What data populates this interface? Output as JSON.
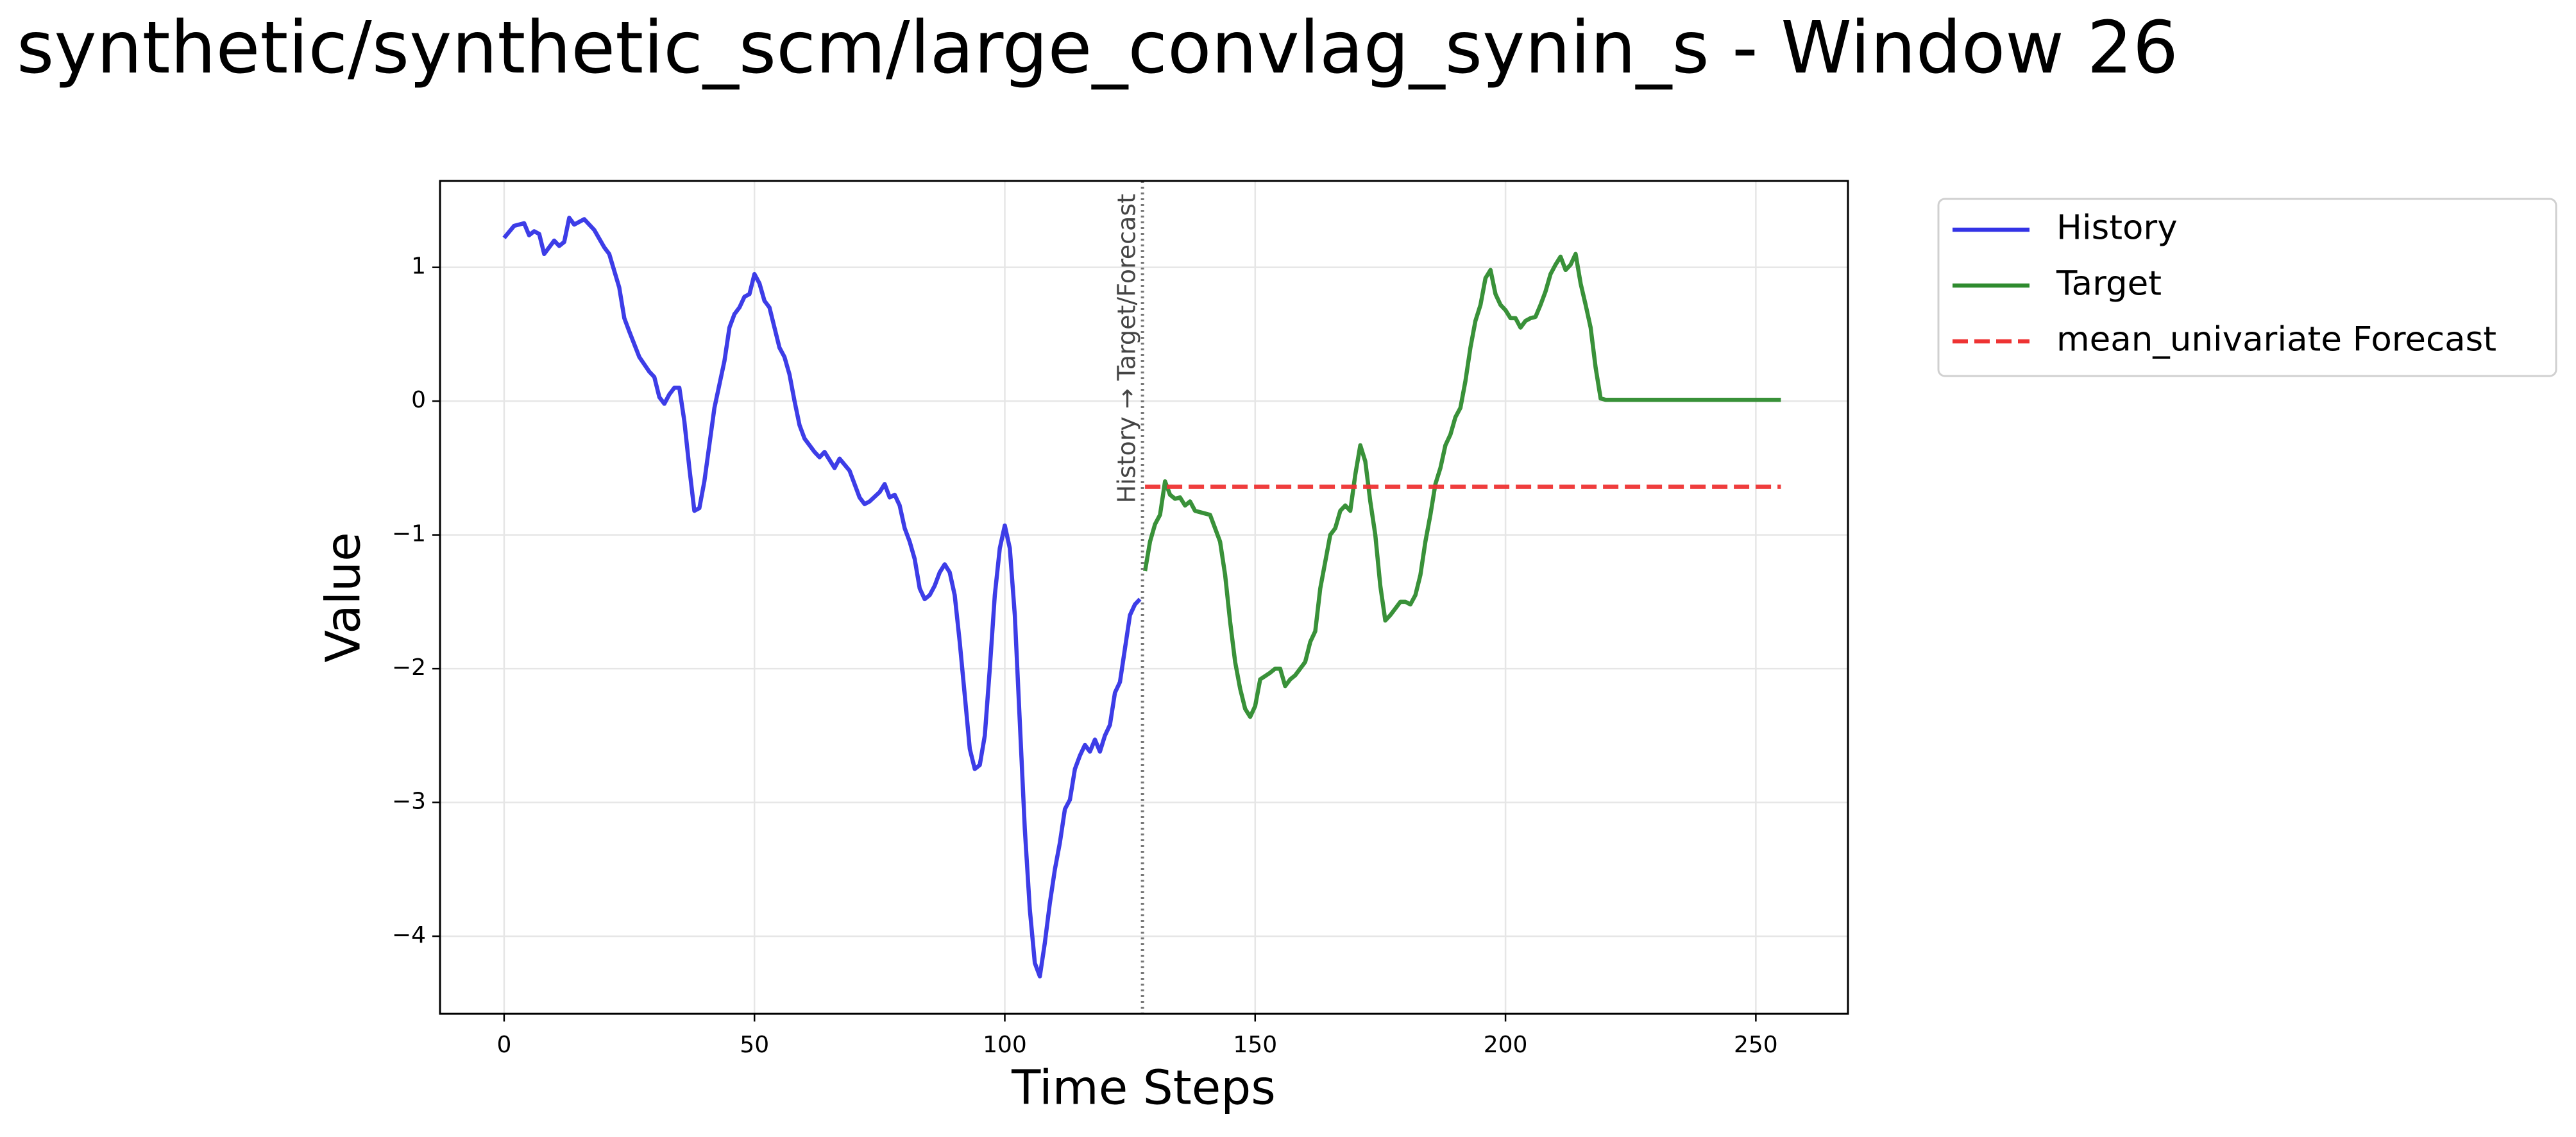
{
  "chart_data": {
    "type": "line",
    "title": "synthetic/synthetic_scm/large_convlag_synin_s - Window 26",
    "x_label": "Time Steps",
    "y_label": "Value",
    "annotation": "History → Target/Forecast",
    "split_x": 127.5,
    "xlim": [
      -12.8,
      268.4
    ],
    "ylim": [
      -4.58,
      1.646
    ],
    "xticks": [
      0,
      50,
      100,
      150,
      200,
      250
    ],
    "yticks": [
      {
        "value": -4,
        "label": "−4"
      },
      {
        "value": -3,
        "label": "−3"
      },
      {
        "value": -2,
        "label": "−2"
      },
      {
        "value": -1,
        "label": "−1"
      },
      0,
      1
    ],
    "grid": true,
    "legend": "outside upper right",
    "series": [
      {
        "name": "History",
        "color": "#3333e6",
        "dash": "solid",
        "x": [
          0,
          2,
          4,
          5,
          6,
          7,
          8,
          10,
          11,
          12,
          13,
          14,
          16,
          18,
          20,
          21,
          23,
          24,
          25,
          27,
          29,
          30,
          31,
          32,
          33,
          34,
          35,
          36,
          37,
          38,
          39,
          40,
          42,
          44,
          45,
          46,
          47,
          48,
          49,
          50,
          51,
          52,
          53,
          54,
          55,
          56,
          57,
          58,
          59,
          60,
          62,
          63,
          64,
          66,
          67,
          69,
          71,
          72,
          73,
          75,
          76,
          77,
          78,
          79,
          80,
          81,
          82,
          83,
          84,
          85,
          86,
          87,
          88,
          89,
          90,
          91,
          92,
          93,
          94,
          95,
          96,
          97,
          98,
          99,
          100,
          101,
          102,
          103,
          104,
          105,
          106,
          107,
          108,
          109,
          110,
          111,
          112,
          113,
          114,
          115,
          116,
          117,
          118,
          119,
          120,
          121,
          122,
          123,
          124,
          125,
          126,
          127
        ],
        "values": [
          1.22,
          1.31,
          1.33,
          1.24,
          1.27,
          1.25,
          1.1,
          1.2,
          1.16,
          1.19,
          1.37,
          1.32,
          1.36,
          1.28,
          1.15,
          1.1,
          0.85,
          0.62,
          0.52,
          0.33,
          0.22,
          0.18,
          0.03,
          -0.02,
          0.05,
          0.1,
          0.1,
          -0.15,
          -0.5,
          -0.82,
          -0.8,
          -0.6,
          -0.05,
          0.3,
          0.55,
          0.65,
          0.7,
          0.78,
          0.8,
          0.95,
          0.88,
          0.75,
          0.7,
          0.55,
          0.4,
          0.33,
          0.2,
          0.0,
          -0.18,
          -0.28,
          -0.38,
          -0.42,
          -0.38,
          -0.5,
          -0.43,
          -0.52,
          -0.72,
          -0.77,
          -0.75,
          -0.68,
          -0.62,
          -0.72,
          -0.7,
          -0.78,
          -0.95,
          -1.05,
          -1.18,
          -1.4,
          -1.48,
          -1.45,
          -1.38,
          -1.28,
          -1.22,
          -1.28,
          -1.45,
          -1.8,
          -2.2,
          -2.6,
          -2.75,
          -2.72,
          -2.5,
          -2.0,
          -1.45,
          -1.1,
          -0.93,
          -1.1,
          -1.6,
          -2.4,
          -3.2,
          -3.8,
          -4.2,
          -4.3,
          -4.05,
          -3.75,
          -3.5,
          -3.3,
          -3.05,
          -2.98,
          -2.75,
          -2.65,
          -2.57,
          -2.62,
          -2.53,
          -2.62,
          -2.5,
          -2.42,
          -2.18,
          -2.1,
          -1.85,
          -1.6,
          -1.52,
          -1.48
        ]
      },
      {
        "name": "Target",
        "color": "#2e8b2e",
        "dash": "solid",
        "x": [
          128,
          129,
          130,
          131,
          132,
          133,
          134,
          135,
          136,
          137,
          138,
          140,
          141,
          142,
          143,
          144,
          145,
          146,
          147,
          148,
          149,
          150,
          151,
          153,
          154,
          155,
          156,
          157,
          158,
          160,
          161,
          162,
          163,
          164,
          165,
          166,
          167,
          168,
          169,
          170,
          171,
          172,
          173,
          174,
          175,
          176,
          177,
          178,
          179,
          180,
          181,
          182,
          183,
          184,
          185,
          186,
          187,
          188,
          189,
          190,
          191,
          192,
          193,
          194,
          195,
          196,
          197,
          198,
          199,
          200,
          201,
          202,
          203,
          204,
          205,
          206,
          207,
          208,
          209,
          210,
          211,
          212,
          213,
          214,
          215,
          216,
          217,
          218,
          219,
          220,
          255
        ],
        "values": [
          -1.27,
          -1.05,
          -0.92,
          -0.85,
          -0.6,
          -0.7,
          -0.73,
          -0.72,
          -0.78,
          -0.75,
          -0.82,
          -0.84,
          -0.85,
          -0.95,
          -1.05,
          -1.3,
          -1.65,
          -1.95,
          -2.15,
          -2.3,
          -2.36,
          -2.28,
          -2.08,
          -2.03,
          -2.0,
          -2.0,
          -2.13,
          -2.08,
          -2.05,
          -1.95,
          -1.8,
          -1.72,
          -1.4,
          -1.2,
          -1.0,
          -0.95,
          -0.82,
          -0.78,
          -0.82,
          -0.55,
          -0.33,
          -0.45,
          -0.75,
          -1.0,
          -1.38,
          -1.64,
          -1.6,
          -1.55,
          -1.5,
          -1.5,
          -1.52,
          -1.45,
          -1.3,
          -1.05,
          -0.85,
          -0.62,
          -0.5,
          -0.33,
          -0.25,
          -0.12,
          -0.05,
          0.15,
          0.4,
          0.6,
          0.72,
          0.92,
          0.98,
          0.8,
          0.72,
          0.68,
          0.62,
          0.62,
          0.55,
          0.6,
          0.62,
          0.63,
          0.72,
          0.82,
          0.95,
          1.02,
          1.08,
          0.98,
          1.02,
          1.1,
          0.88,
          0.72,
          0.55,
          0.25,
          0.02,
          0.01,
          0.01
        ]
      },
      {
        "name": "mean_univariate Forecast",
        "color": "#ee3333",
        "dash": "dashed",
        "x": [
          128,
          255
        ],
        "values": [
          -0.64,
          -0.64
        ]
      }
    ]
  }
}
